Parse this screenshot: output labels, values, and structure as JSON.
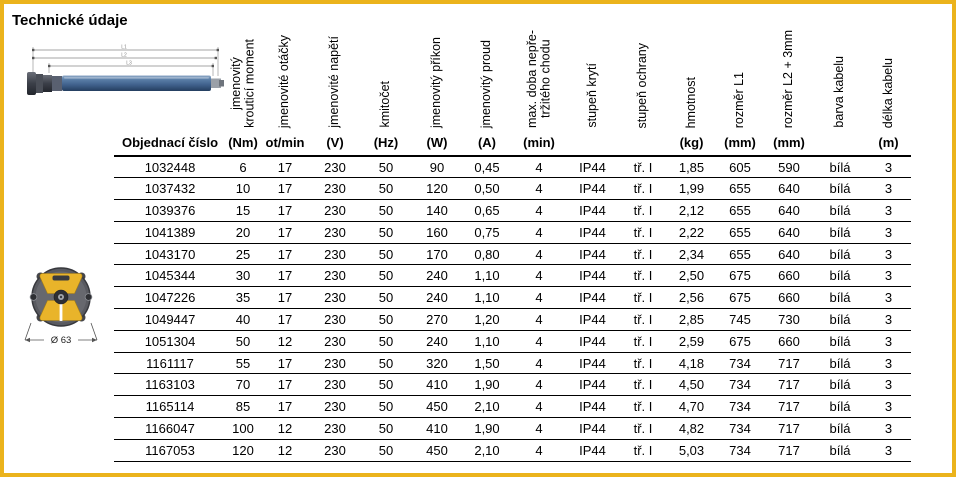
{
  "title": "Technické údaje",
  "colors": {
    "frame_border": "#EBB31C",
    "table_line": "#000000",
    "motor_tube_blue": "#4A6D99",
    "head_yellow": "#E9B42A"
  },
  "motor_diagram": {
    "dimension_labels": [
      "L1",
      "L2",
      "L3"
    ]
  },
  "head_diagram": {
    "diameter_label": "Ø 63"
  },
  "table": {
    "row_header": "Objednací číslo",
    "columns": [
      {
        "label": "jmenovitý\nkrouticí moment",
        "unit": "(Nm)"
      },
      {
        "label": "jmenovité otáčky",
        "unit": "ot/min"
      },
      {
        "label": "jmenovité napětí",
        "unit": "(V)"
      },
      {
        "label": "kmitočet",
        "unit": "(Hz)"
      },
      {
        "label": "jmenovitý příkon",
        "unit": "(W)"
      },
      {
        "label": "jmenovitý proud",
        "unit": "(A)"
      },
      {
        "label": "max. doba nepře-\ntržitého chodu",
        "unit": "(min)"
      },
      {
        "label": "stupeň krytí",
        "unit": ""
      },
      {
        "label": "stupeň ochrany",
        "unit": ""
      },
      {
        "label": "hmotnost",
        "unit": "(kg)"
      },
      {
        "label": "rozměr L1",
        "unit": "(mm)"
      },
      {
        "label": "rozměr L2 + 3mm",
        "unit": "(mm)"
      },
      {
        "label": "barva kabelu",
        "unit": ""
      },
      {
        "label": "délka kabelu",
        "unit": "(m)"
      }
    ],
    "rows": [
      [
        "1032448",
        "6",
        "17",
        "230",
        "50",
        "90",
        "0,45",
        "4",
        "IP44",
        "tř. I",
        "1,85",
        "605",
        "590",
        "bílá",
        "3"
      ],
      [
        "1037432",
        "10",
        "17",
        "230",
        "50",
        "120",
        "0,50",
        "4",
        "IP44",
        "tř. I",
        "1,99",
        "655",
        "640",
        "bílá",
        "3"
      ],
      [
        "1039376",
        "15",
        "17",
        "230",
        "50",
        "140",
        "0,65",
        "4",
        "IP44",
        "tř. I",
        "2,12",
        "655",
        "640",
        "bílá",
        "3"
      ],
      [
        "1041389",
        "20",
        "17",
        "230",
        "50",
        "160",
        "0,75",
        "4",
        "IP44",
        "tř. I",
        "2,22",
        "655",
        "640",
        "bílá",
        "3"
      ],
      [
        "1043170",
        "25",
        "17",
        "230",
        "50",
        "170",
        "0,80",
        "4",
        "IP44",
        "tř. I",
        "2,34",
        "655",
        "640",
        "bílá",
        "3"
      ],
      [
        "1045344",
        "30",
        "17",
        "230",
        "50",
        "240",
        "1,10",
        "4",
        "IP44",
        "tř. I",
        "2,50",
        "675",
        "660",
        "bílá",
        "3"
      ],
      [
        "1047226",
        "35",
        "17",
        "230",
        "50",
        "240",
        "1,10",
        "4",
        "IP44",
        "tř. I",
        "2,56",
        "675",
        "660",
        "bílá",
        "3"
      ],
      [
        "1049447",
        "40",
        "17",
        "230",
        "50",
        "270",
        "1,20",
        "4",
        "IP44",
        "tř. I",
        "2,85",
        "745",
        "730",
        "bílá",
        "3"
      ],
      [
        "1051304",
        "50",
        "12",
        "230",
        "50",
        "240",
        "1,10",
        "4",
        "IP44",
        "tř. I",
        "2,59",
        "675",
        "660",
        "bílá",
        "3"
      ],
      [
        "1161117",
        "55",
        "17",
        "230",
        "50",
        "320",
        "1,50",
        "4",
        "IP44",
        "tř. I",
        "4,18",
        "734",
        "717",
        "bílá",
        "3"
      ],
      [
        "1163103",
        "70",
        "17",
        "230",
        "50",
        "410",
        "1,90",
        "4",
        "IP44",
        "tř. I",
        "4,50",
        "734",
        "717",
        "bílá",
        "3"
      ],
      [
        "1165114",
        "85",
        "17",
        "230",
        "50",
        "450",
        "2,10",
        "4",
        "IP44",
        "tř. I",
        "4,70",
        "734",
        "717",
        "bílá",
        "3"
      ],
      [
        "1166047",
        "100",
        "12",
        "230",
        "50",
        "410",
        "1,90",
        "4",
        "IP44",
        "tř. I",
        "4,82",
        "734",
        "717",
        "bílá",
        "3"
      ],
      [
        "1167053",
        "120",
        "12",
        "230",
        "50",
        "450",
        "2,10",
        "4",
        "IP44",
        "tř. I",
        "5,03",
        "734",
        "717",
        "bílá",
        "3"
      ]
    ]
  }
}
